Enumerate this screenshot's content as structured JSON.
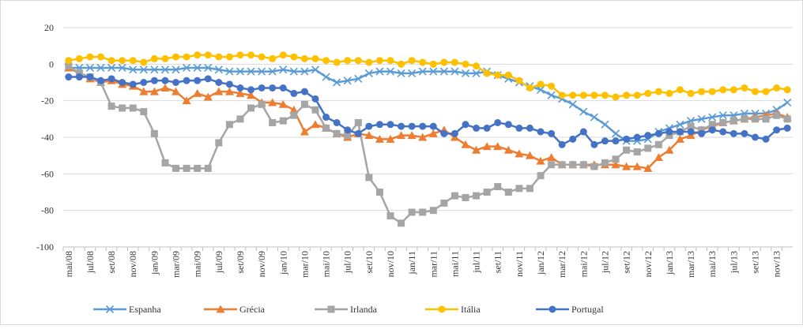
{
  "chart_data": {
    "type": "line",
    "categories": [
      "mai/08",
      null,
      "jul/08",
      null,
      "set/08",
      null,
      "nov/08",
      null,
      "jan/09",
      null,
      "mar/09",
      null,
      "mai/09",
      null,
      "jul/09",
      null,
      "set/09",
      null,
      "nov/09",
      null,
      "jan/10",
      null,
      "mar/10",
      null,
      "mai/10",
      null,
      "jul/10",
      null,
      "set/10",
      null,
      "nov/10",
      null,
      "jan/11",
      null,
      "mar/11",
      null,
      "mai/11",
      null,
      "jul/11",
      null,
      "set/11",
      null,
      "nov/11",
      null,
      "jan/12",
      null,
      "mar/12",
      null,
      "mai/12",
      null,
      "jul/12",
      null,
      "set/12",
      null,
      "nov/12",
      null,
      "jan/13",
      null,
      "mar/13",
      null,
      "mai/13",
      null,
      "jul/13",
      null,
      "set/13",
      null,
      "nov/13",
      null
    ],
    "series": [
      {
        "name": "Espanha",
        "color": "#5b9bd5",
        "marker": "x",
        "values": [
          -2,
          -2,
          -2,
          -2,
          -2,
          -2,
          -3,
          -3,
          -3,
          -3,
          -3,
          -2,
          -2,
          -2,
          -3,
          -4,
          -4,
          -4,
          -4,
          -4,
          -3,
          -4,
          -4,
          -3,
          -7,
          -10,
          -9,
          -8,
          -5,
          -4,
          -4,
          -5,
          -5,
          -4,
          -4,
          -4,
          -4,
          -5,
          -5,
          -4,
          -6,
          -8,
          -10,
          -12,
          -14,
          -17,
          -19,
          -22,
          -26,
          -29,
          -33,
          -38,
          -42,
          -42,
          -41,
          -37,
          -35,
          -33,
          -31,
          -30,
          -29,
          -28,
          -28,
          -27,
          -27,
          -27,
          -25,
          -21
        ]
      },
      {
        "name": "Grécia",
        "color": "#ed7d31",
        "marker": "triangle",
        "values": [
          -2,
          -5,
          -8,
          -10,
          -9,
          -11,
          -12,
          -15,
          -15,
          -13,
          -15,
          -20,
          -16,
          -18,
          -15,
          -15,
          -16,
          -17,
          -21,
          -21,
          -22,
          -25,
          -37,
          -33,
          -35,
          -38,
          -40,
          -38,
          -39,
          -41,
          -41,
          -39,
          -39,
          -40,
          -38,
          -36,
          -40,
          -44,
          -47,
          -45,
          -45,
          -47,
          -49,
          -50,
          -53,
          -51,
          -55,
          -55,
          -55,
          -55,
          -55,
          -55,
          -56,
          -56,
          -57,
          -51,
          -47,
          -41,
          -39,
          -36,
          -34,
          -32,
          -31,
          -30,
          -29,
          -28,
          -27,
          -29
        ]
      },
      {
        "name": "Irlanda",
        "color": "#a5a5a5",
        "marker": "square",
        "values": [
          -1,
          -5,
          -7,
          -10,
          -23,
          -24,
          -24,
          -26,
          -38,
          -54,
          -57,
          -57,
          -57,
          -57,
          -43,
          -33,
          -30,
          -24,
          -22,
          -32,
          -31,
          -28,
          -22,
          -25,
          -35,
          -38,
          -39,
          -32,
          -62,
          -70,
          -83,
          -87,
          -81,
          -81,
          -80,
          -76,
          -72,
          -73,
          -72,
          -70,
          -67,
          -70,
          -68,
          -68,
          -61,
          -55,
          -55,
          -55,
          -55,
          -56,
          -54,
          -52,
          -47,
          -48,
          -46,
          -44,
          -39,
          -37,
          -34,
          -36,
          -33,
          -32,
          -31,
          -30,
          -30,
          -30,
          -28,
          -30
        ]
      },
      {
        "name": "Itália",
        "color": "#ffc000",
        "marker": "circle",
        "values": [
          2,
          3,
          4,
          4,
          2,
          2,
          2,
          1,
          3,
          3,
          4,
          4,
          5,
          5,
          4,
          4,
          5,
          5,
          4,
          3,
          5,
          4,
          3,
          3,
          2,
          1,
          2,
          2,
          1,
          2,
          2,
          0,
          2,
          1,
          0,
          1,
          1,
          0,
          -1,
          -5,
          -6,
          -6,
          -9,
          -13,
          -11,
          -12,
          -17,
          -17,
          -17,
          -17,
          -17,
          -18,
          -17,
          -17,
          -16,
          -15,
          -16,
          -14,
          -16,
          -15,
          -15,
          -14,
          -14,
          -13,
          -15,
          -15,
          -13,
          -14
        ]
      },
      {
        "name": "Portugal",
        "color": "#4472c4",
        "marker": "circle",
        "values": [
          -7,
          -7,
          -7,
          -9,
          -8,
          -10,
          -11,
          -10,
          -9,
          -9,
          -10,
          -9,
          -9,
          -8,
          -10,
          -11,
          -13,
          -14,
          -13,
          -13,
          -13,
          -16,
          -15,
          -19,
          -29,
          -32,
          -36,
          -38,
          -34,
          -33,
          -33,
          -34,
          -34,
          -34,
          -34,
          -38,
          -38,
          -33,
          -35,
          -35,
          -32,
          -33,
          -35,
          -35,
          -37,
          -38,
          -44,
          -41,
          -37,
          -44,
          -42,
          -42,
          -41,
          -40,
          -39,
          -38,
          -37,
          -37,
          -37,
          -38,
          -36,
          -37,
          -38,
          -38,
          -40,
          -41,
          -36,
          -35
        ]
      }
    ],
    "ylim": [
      -100,
      20
    ],
    "yticks": [
      20,
      0,
      -20,
      -40,
      -60,
      -80,
      -100
    ],
    "grid": true,
    "legend": "bottom"
  }
}
